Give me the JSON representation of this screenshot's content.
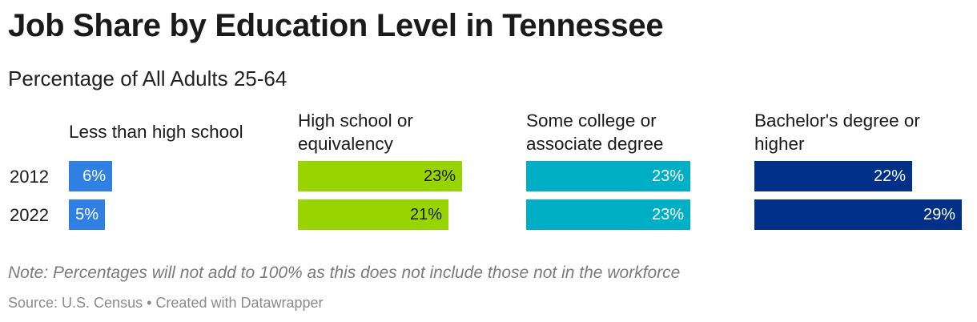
{
  "header": {
    "title": "Job Share by Education Level in Tennessee",
    "subtitle": "Percentage of All Adults 25-64"
  },
  "footer": {
    "note": "Note: Percentages will not add to 100% as this does not include those not in the workforce",
    "source": "Source: U.S. Census",
    "separator": "•",
    "credit": "Created with Datawrapper"
  },
  "chart_data": {
    "type": "bar",
    "orientation": "horizontal",
    "layout": "split-bars",
    "title": "Job Share by Education Level in Tennessee",
    "subtitle": "Percentage of All Adults 25-64",
    "categories": [
      "2012",
      "2022"
    ],
    "unit": "%",
    "value_format": "{v}%",
    "shared_scale_max": 30,
    "series": [
      {
        "name": "Less than high school",
        "name_lines": [
          "Less than high school"
        ],
        "color": "#2f80e2",
        "label_color": "#ffffff",
        "values": [
          6,
          5
        ]
      },
      {
        "name": "High school or equivalency",
        "name_lines": [
          "High school or",
          "equivalency"
        ],
        "color": "#98d500",
        "label_color": "#1a1a1a",
        "values": [
          23,
          21
        ]
      },
      {
        "name": "Some college or associate degree",
        "name_lines": [
          "Some college or",
          "associate degree"
        ],
        "color": "#00aec5",
        "label_color": "#ffffff",
        "values": [
          23,
          23
        ]
      },
      {
        "name": "Bachelor's degree or higher",
        "name_lines": [
          "Bachelor's degree or",
          "higher"
        ],
        "color": "#003087",
        "label_color": "#ffffff",
        "values": [
          22,
          29
        ]
      }
    ],
    "grid": false,
    "legend": "none"
  }
}
